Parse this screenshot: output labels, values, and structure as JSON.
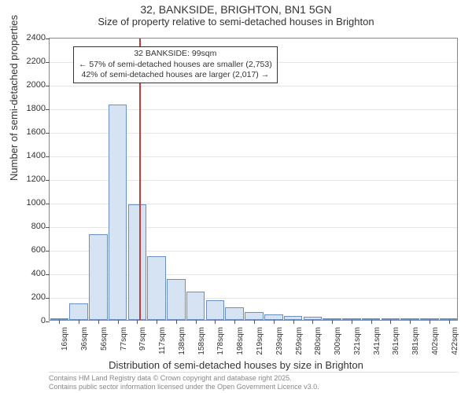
{
  "title": {
    "line1": "32, BANKSIDE, BRIGHTON, BN1 5GN",
    "line2": "Size of property relative to semi-detached houses in Brighton"
  },
  "chart": {
    "type": "histogram",
    "background_color": "#ffffff",
    "grid_color": "#e6e6e6",
    "bar_fill": "#d6e3f2",
    "bar_border": "#6a8fc3",
    "border_color": "#888888",
    "yaxis": {
      "label": "Number of semi-detached properties",
      "min": 0,
      "max": 2400,
      "ticks": [
        0,
        200,
        400,
        600,
        800,
        1000,
        1200,
        1400,
        1600,
        1800,
        2000,
        2200,
        2400
      ],
      "label_fontsize": 13,
      "tick_fontsize": 11
    },
    "xaxis": {
      "label": "Distribution of semi-detached houses by size in Brighton",
      "ticks": [
        "16sqm",
        "36sqm",
        "56sqm",
        "77sqm",
        "97sqm",
        "117sqm",
        "138sqm",
        "158sqm",
        "178sqm",
        "198sqm",
        "219sqm",
        "239sqm",
        "259sqm",
        "280sqm",
        "300sqm",
        "321sqm",
        "341sqm",
        "361sqm",
        "381sqm",
        "402sqm",
        "422sqm"
      ],
      "label_fontsize": 13,
      "tick_fontsize": 10
    },
    "bars": [
      0,
      140,
      730,
      1830,
      980,
      540,
      350,
      240,
      170,
      110,
      70,
      50,
      35,
      25,
      15,
      10,
      8,
      6,
      4,
      3,
      2
    ],
    "marker": {
      "position_index": 4.1,
      "color": "#c23a3a"
    },
    "annotation": {
      "line1": "32 BANKSIDE: 99sqm",
      "line2": "← 57% of semi-detached houses are smaller (2,753)",
      "line3": "42% of semi-detached houses are larger (2,017) →",
      "border_color": "#333333",
      "background": "#ffffff",
      "fontsize": 10.5
    }
  },
  "footer": {
    "line1": "Contains HM Land Registry data © Crown copyright and database right 2025.",
    "line2": "Contains public sector information licensed under the Open Government Licence v3.0."
  }
}
